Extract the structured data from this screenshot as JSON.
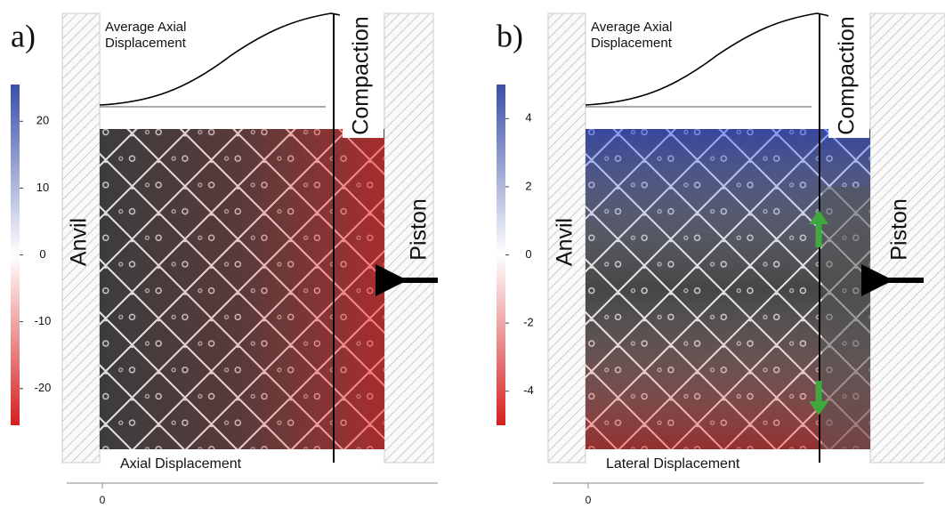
{
  "panels": [
    {
      "label": "a)",
      "curve_title": [
        "Average Axial",
        "Displacement"
      ],
      "annotation": "Compaction",
      "left_label": "Anvil",
      "right_label": "Piston",
      "image_label": "Axial Displacement",
      "x_tick": 0,
      "colorbar": {
        "range": [
          -25.5,
          25.5
        ],
        "ticks": [
          20,
          10,
          0,
          -10,
          -20
        ]
      }
    },
    {
      "label": "b)",
      "curve_title": [
        "Average Axial",
        "Displacement"
      ],
      "annotation": "Compaction",
      "left_label": "Anvil",
      "right_label": "Piston",
      "image_label": "Lateral Displacement",
      "x_tick": 0,
      "colorbar": {
        "range": [
          -5,
          5
        ],
        "ticks": [
          4,
          2,
          0,
          -2,
          -4
        ]
      }
    }
  ]
}
